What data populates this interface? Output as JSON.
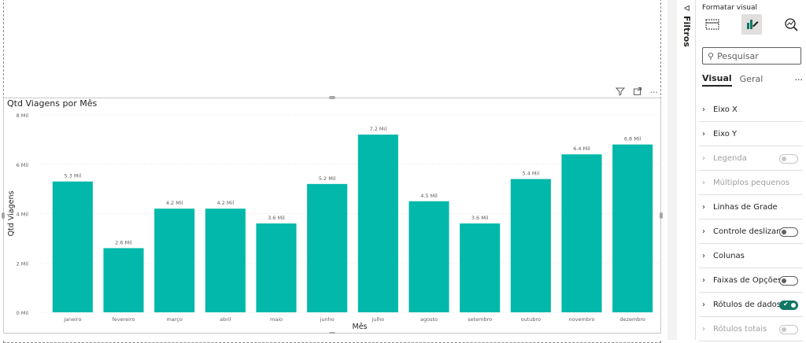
{
  "visual": {
    "title": "Qtd Viagens por Mês",
    "header_icons": [
      "filter-icon",
      "focus-mode-icon",
      "more-options-icon"
    ]
  },
  "chart_data": {
    "type": "bar",
    "title": "Qtd Viagens por Mês",
    "xlabel": "Mês",
    "ylabel": "Qtd Viagens",
    "ylim": [
      0,
      8000
    ],
    "yticks": [
      {
        "value": 0,
        "label": "0 Mil"
      },
      {
        "value": 2000,
        "label": "2 Mil"
      },
      {
        "value": 4000,
        "label": "4 Mil"
      },
      {
        "value": 6000,
        "label": "6 Mil"
      },
      {
        "value": 8000,
        "label": "8 Mil"
      }
    ],
    "categories": [
      "janeiro",
      "fevereiro",
      "março",
      "abril",
      "maio",
      "junho",
      "julho",
      "agosto",
      "setembro",
      "outubro",
      "novembro",
      "dezembro"
    ],
    "values": [
      5300,
      2600,
      4200,
      4200,
      3600,
      5200,
      7200,
      4500,
      3600,
      5400,
      6400,
      6800
    ],
    "data_labels": [
      "5.3 Mil",
      "2.6 Mil",
      "4.2 Mil",
      "4.2 Mil",
      "3.6 Mil",
      "5.2 Mil",
      "7.2 Mil",
      "4.5 Mil",
      "3.6 Mil",
      "5.4 Mil",
      "6.4 Mil",
      "6.8 Mil"
    ],
    "bar_color": "#01B8AA",
    "grid": true,
    "legend": "none"
  },
  "filters_pane": {
    "label": "Filtros"
  },
  "format_pane": {
    "title": "Formatar visual",
    "search_placeholder": "Pesquisar",
    "tabs": [
      {
        "label": "Visual",
        "active": true
      },
      {
        "label": "Geral",
        "active": false
      }
    ],
    "more": "···",
    "cards": [
      {
        "label": "Eixo X",
        "toggle": null,
        "disabled": false
      },
      {
        "label": "Eixo Y",
        "toggle": null,
        "disabled": false
      },
      {
        "label": "Legenda",
        "toggle": "off",
        "disabled": true
      },
      {
        "label": "Múltiplos pequenos",
        "toggle": null,
        "disabled": true
      },
      {
        "label": "Linhas de Grade",
        "toggle": null,
        "disabled": false
      },
      {
        "label": "Controle deslizan...",
        "toggle": "off",
        "disabled": false
      },
      {
        "label": "Colunas",
        "toggle": null,
        "disabled": false
      },
      {
        "label": "Faixas de Opções",
        "toggle": "off",
        "disabled": false
      },
      {
        "label": "Rótulos de dados",
        "toggle": "on",
        "disabled": false
      },
      {
        "label": "Rótulos totais",
        "toggle": "off",
        "disabled": true
      }
    ],
    "accent_color": "#117865"
  }
}
